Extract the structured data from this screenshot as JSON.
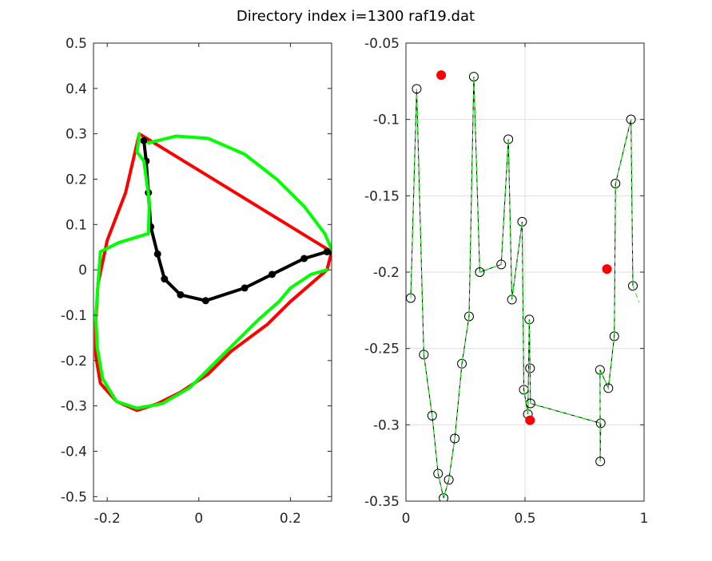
{
  "title": "Directory index i=1300 raf19.dat",
  "colors": {
    "red": "#ff0000",
    "green": "#00ff00",
    "black": "#000000",
    "grid": "#dfdfdf",
    "axis": "#262626"
  },
  "chart_data": [
    {
      "type": "line",
      "title": "",
      "xlabel": "",
      "ylabel": "",
      "xlim": [
        -0.23,
        0.29
      ],
      "ylim": [
        -0.51,
        0.5
      ],
      "xticks": [
        -0.2,
        0,
        0.2
      ],
      "xtick_labels": [
        "-0.2",
        "0",
        "0.2"
      ],
      "yticks": [
        0.5,
        0.4,
        0.3,
        0.2,
        0.1,
        0,
        -0.1,
        -0.2,
        -0.3,
        -0.4,
        -0.5
      ],
      "ytick_labels": [
        "0.5",
        "0.4",
        "0.3",
        "0.2",
        "0.1",
        "0",
        "-0.1",
        "-0.2",
        "-0.3",
        "-0.4",
        "-0.5"
      ],
      "grid": false,
      "series": [
        {
          "color": "red",
          "style": "thick-line",
          "x": [
            -0.13,
            0.29,
            0.28,
            0.2,
            0.15,
            0.07,
            0.02,
            -0.04,
            -0.09,
            -0.135,
            -0.18,
            -0.215,
            -0.225,
            -0.225,
            -0.22,
            -0.2,
            -0.16,
            -0.13
          ],
          "y": [
            0.3,
            0.04,
            0.0,
            -0.07,
            -0.12,
            -0.18,
            -0.23,
            -0.27,
            -0.295,
            -0.31,
            -0.29,
            -0.25,
            -0.19,
            -0.115,
            -0.03,
            0.065,
            0.17,
            0.3
          ]
        },
        {
          "color": "black",
          "style": "thick-line-markers",
          "x": [
            -0.12,
            -0.115,
            -0.11,
            -0.105,
            -0.09,
            -0.075,
            -0.04,
            0.015,
            0.1,
            0.16,
            0.23,
            0.28,
            0.29
          ],
          "y": [
            0.285,
            0.24,
            0.17,
            0.095,
            0.035,
            -0.02,
            -0.055,
            -0.068,
            -0.04,
            -0.01,
            0.025,
            0.04,
            0.04
          ]
        },
        {
          "color": "green",
          "style": "thick-line",
          "x": [
            -0.11,
            -0.05,
            0.02,
            0.1,
            0.17,
            0.23,
            0.275,
            0.29
          ],
          "y": [
            0.28,
            0.295,
            0.29,
            0.255,
            0.2,
            0.14,
            0.08,
            0.045
          ]
        },
        {
          "color": "green",
          "style": "thick-line",
          "x": [
            -0.13,
            -0.135,
            -0.12,
            -0.108,
            -0.11,
            -0.175,
            -0.215,
            -0.22,
            -0.225,
            -0.222,
            -0.21,
            -0.18,
            -0.135,
            -0.08,
            -0.02,
            0.03,
            0.08,
            0.13,
            0.175,
            0.2,
            0.245,
            0.28
          ],
          "y": [
            0.3,
            0.26,
            0.24,
            0.15,
            0.08,
            0.06,
            0.04,
            -0.03,
            -0.1,
            -0.17,
            -0.24,
            -0.29,
            -0.305,
            -0.295,
            -0.26,
            -0.21,
            -0.16,
            -0.11,
            -0.07,
            -0.04,
            -0.01,
            0.0
          ]
        }
      ]
    },
    {
      "type": "scatter",
      "title": "",
      "xlabel": "",
      "ylabel": "",
      "xlim": [
        0,
        1
      ],
      "ylim": [
        -0.35,
        -0.05
      ],
      "xticks": [
        0,
        0.5,
        1
      ],
      "xtick_labels": [
        "0",
        "0.5",
        "1"
      ],
      "yticks": [
        -0.05,
        -0.1,
        -0.15,
        -0.2,
        -0.25,
        -0.3,
        -0.35
      ],
      "ytick_labels": [
        "-0.05",
        "-0.1",
        "-0.15",
        "-0.2",
        "-0.25",
        "-0.3",
        "-0.35"
      ],
      "grid": true,
      "series": [
        {
          "color": "black",
          "style": "line-open-circles",
          "x": [
            0.02,
            0.045,
            0.075,
            0.11,
            0.135,
            0.158,
            0.18,
            0.205,
            0.235,
            0.265,
            0.285,
            0.31,
            0.4,
            0.43,
            0.445,
            0.488,
            0.495,
            0.512,
            0.518,
            0.521,
            0.523,
            0.818,
            0.816,
            0.815,
            0.85,
            0.875,
            0.88,
            0.945,
            0.953
          ],
          "y": [
            -0.217,
            -0.08,
            -0.254,
            -0.294,
            -0.332,
            -0.348,
            -0.336,
            -0.309,
            -0.26,
            -0.229,
            -0.072,
            -0.2,
            -0.195,
            -0.113,
            -0.218,
            -0.167,
            -0.277,
            -0.293,
            -0.231,
            -0.263,
            -0.286,
            -0.299,
            -0.324,
            -0.264,
            -0.276,
            -0.242,
            -0.142,
            -0.1,
            -0.209
          ]
        },
        {
          "color": "red",
          "style": "filled-markers",
          "x": [
            0.148,
            0.521,
            0.844
          ],
          "y": [
            -0.071,
            -0.297,
            -0.198
          ]
        },
        {
          "color": "green",
          "style": "dashed-line",
          "x": [
            0.02,
            0.045,
            0.075,
            0.11,
            0.135,
            0.158,
            0.18,
            0.205,
            0.235,
            0.265,
            0.285,
            0.31,
            0.4,
            0.43,
            0.445,
            0.488,
            0.495,
            0.512,
            0.518,
            0.521,
            0.523,
            0.818,
            0.816,
            0.815,
            0.85,
            0.875,
            0.88,
            0.945,
            0.953,
            0.98
          ],
          "y": [
            -0.217,
            -0.08,
            -0.254,
            -0.294,
            -0.332,
            -0.348,
            -0.336,
            -0.309,
            -0.26,
            -0.229,
            -0.072,
            -0.2,
            -0.195,
            -0.113,
            -0.218,
            -0.167,
            -0.277,
            -0.293,
            -0.231,
            -0.263,
            -0.286,
            -0.299,
            -0.324,
            -0.264,
            -0.276,
            -0.242,
            -0.142,
            -0.1,
            -0.209,
            -0.22
          ]
        }
      ]
    }
  ]
}
